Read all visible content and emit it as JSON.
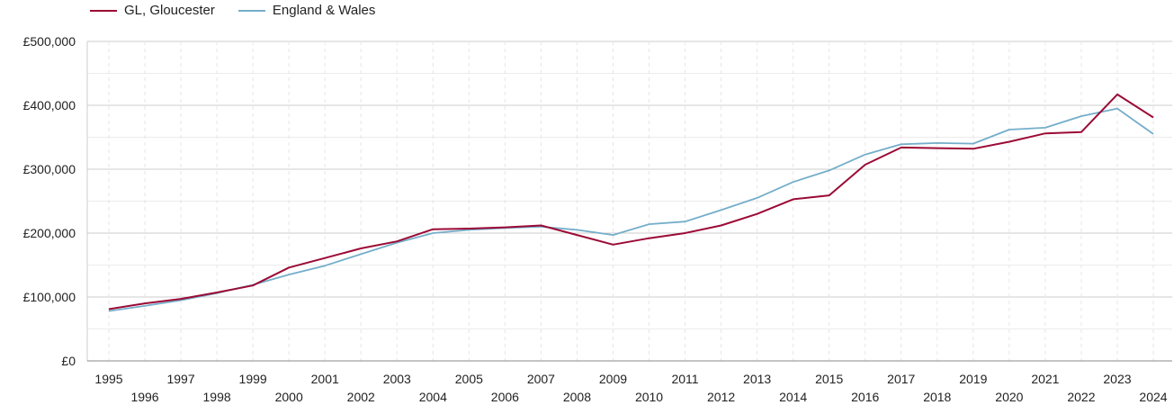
{
  "chart_data": {
    "type": "line",
    "title": "",
    "xlabel": "",
    "ylabel": "",
    "x": [
      1995,
      1996,
      1997,
      1998,
      1999,
      2000,
      2001,
      2002,
      2003,
      2004,
      2005,
      2006,
      2007,
      2008,
      2009,
      2010,
      2011,
      2012,
      2013,
      2014,
      2015,
      2016,
      2017,
      2018,
      2019,
      2020,
      2021,
      2022,
      2023,
      2024
    ],
    "x_tick_labels": [
      "1995",
      "1996",
      "1997",
      "1998",
      "1999",
      "2000",
      "2001",
      "2002",
      "2003",
      "2004",
      "2005",
      "2006",
      "2007",
      "2008",
      "2009",
      "2010",
      "2011",
      "2012",
      "2013",
      "2014",
      "2015",
      "2016",
      "2017",
      "2018",
      "2019",
      "2020",
      "2021",
      "2022",
      "2023",
      "2024"
    ],
    "ylim": [
      0,
      500000
    ],
    "y_ticks": [
      0,
      100000,
      200000,
      300000,
      400000,
      500000
    ],
    "y_tick_labels": [
      "£0",
      "£100,000",
      "£200,000",
      "£300,000",
      "£400,000",
      "£500,000"
    ],
    "grid": true,
    "legend_position": "top-left",
    "series": [
      {
        "name": "GL, Gloucester",
        "color": "#9b0a35",
        "values": [
          81000,
          90000,
          97000,
          107000,
          118000,
          146000,
          161000,
          176000,
          187000,
          206000,
          207000,
          209000,
          212000,
          197000,
          182000,
          192000,
          200000,
          212000,
          230000,
          253000,
          259000,
          307000,
          334000,
          333000,
          332000,
          343000,
          356000,
          358000,
          417000,
          381000
        ]
      },
      {
        "name": "England & Wales",
        "color": "#74aeca",
        "values": [
          78000,
          86000,
          95000,
          106000,
          119000,
          135000,
          149000,
          167000,
          185000,
          200000,
          205000,
          208000,
          210000,
          205000,
          197000,
          214000,
          218000,
          236000,
          255000,
          280000,
          298000,
          323000,
          339000,
          341000,
          340000,
          362000,
          365000,
          383000,
          395000,
          355000
        ]
      }
    ]
  }
}
